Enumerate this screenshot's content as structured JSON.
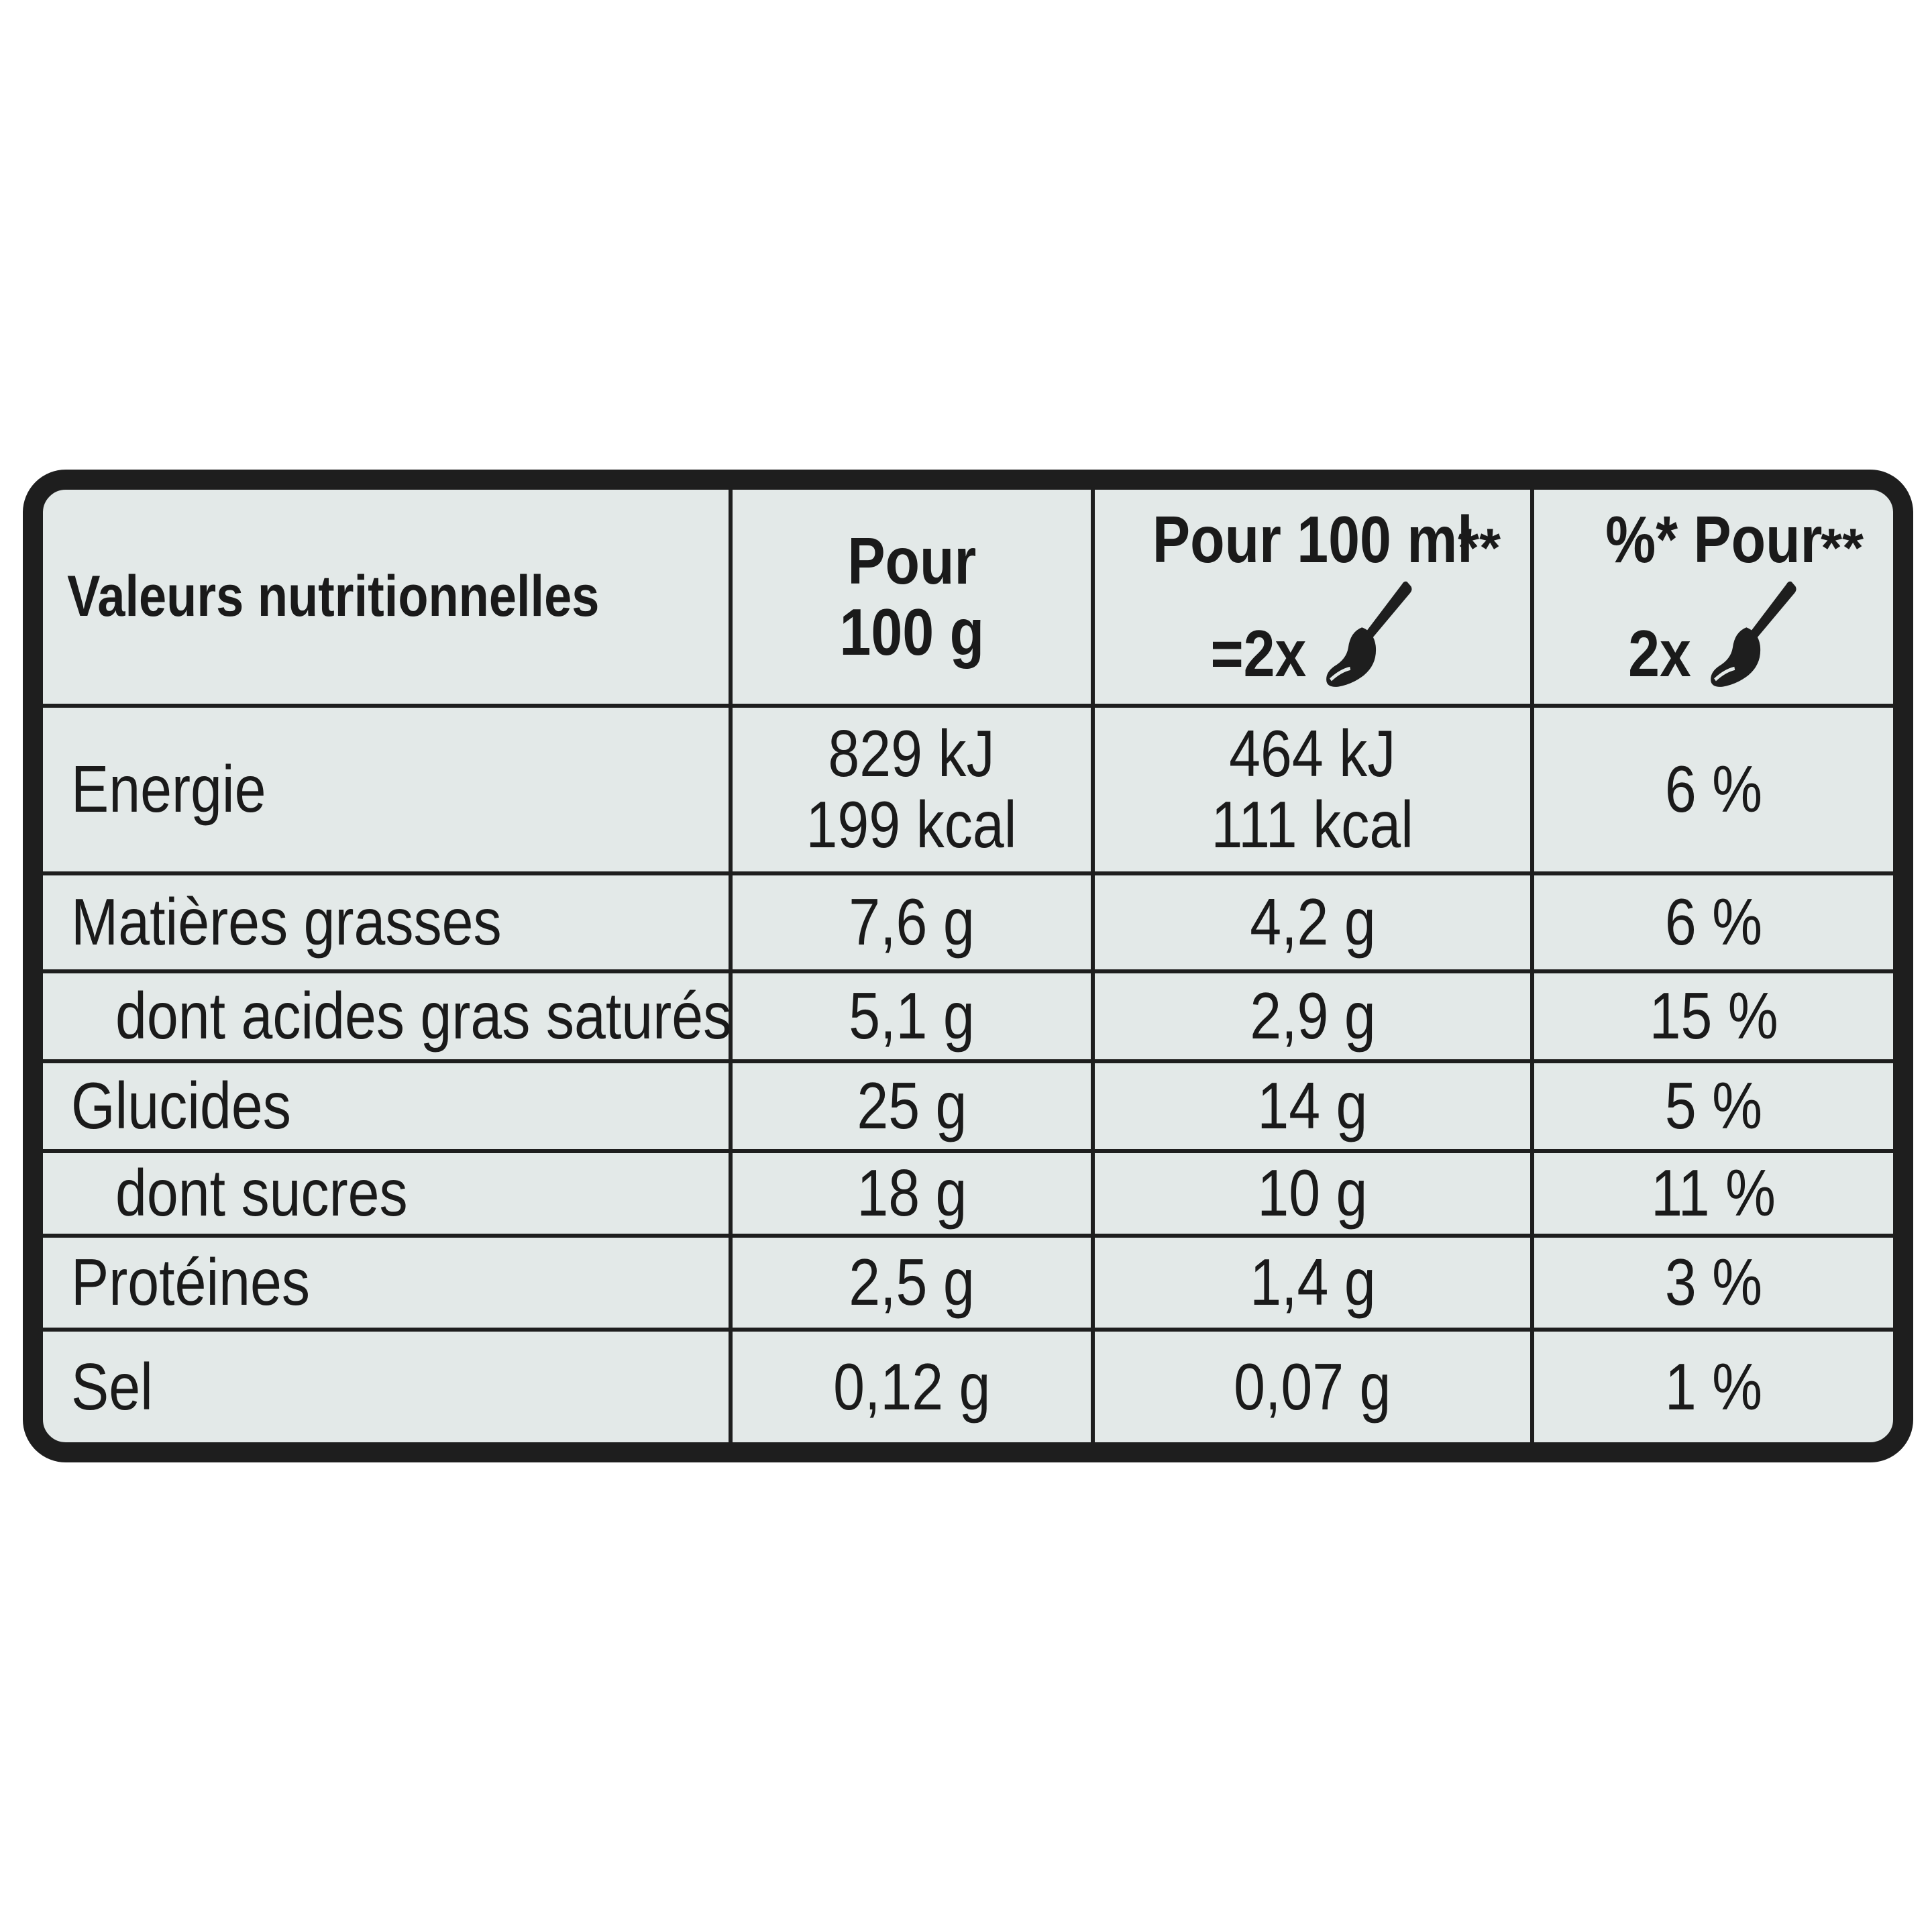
{
  "table": {
    "header": {
      "label": "Valeurs nutritionnelles",
      "col_100g": {
        "line1": "Pour",
        "line2": "100 g"
      },
      "col_100ml": {
        "line1": "Pour 100 ml",
        "line2": "=2x",
        "stars": "**",
        "icon": "spoon-icon"
      },
      "col_pct": {
        "line1": "%* Pour",
        "line2": "2x",
        "stars": "**",
        "icon": "spoon-icon"
      }
    },
    "rows": [
      {
        "label": "Energie",
        "per100g": [
          "829 kJ",
          "199 kcal"
        ],
        "per100ml": [
          "464 kJ",
          "111 kcal"
        ],
        "pct": "6 %"
      },
      {
        "label": "Matières grasses",
        "per100g": "7,6 g",
        "per100ml": "4,2 g",
        "pct": "6 %"
      },
      {
        "label": "dont acides gras saturés",
        "per100g": "5,1 g",
        "per100ml": "2,9 g",
        "pct": "15 %"
      },
      {
        "label": "Glucides",
        "per100g": "25 g",
        "per100ml": "14 g",
        "pct": "5 %"
      },
      {
        "label": "dont sucres",
        "per100g": "18 g",
        "per100ml": "10 g",
        "pct": "11 %"
      },
      {
        "label": "Protéines",
        "per100g": "2,5 g",
        "per100ml": "1,4 g",
        "pct": "3 %"
      },
      {
        "label": "Sel",
        "per100g": "0,12 g",
        "per100ml": "0,07 g",
        "pct": "1 %"
      }
    ]
  },
  "colors": {
    "panel_background": "#e3e9e8",
    "border": "#1e1e1e",
    "text": "#1a1a1a"
  }
}
